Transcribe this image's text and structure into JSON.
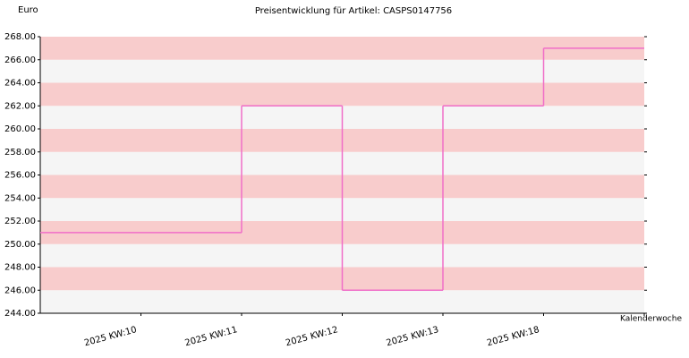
{
  "chart_data": {
    "type": "step",
    "title": "Preisentwicklung für Artikel: CASPS0147756",
    "y_label": "Euro",
    "x_label": "Kalenderwoche",
    "categories": [
      "2025 KW:10",
      "2025 KW:11",
      "2025 KW:12",
      "2025 KW:13",
      "2025 KW:18",
      null
    ],
    "series": [
      {
        "name": "CASPS0147756",
        "color": "#f06ec8",
        "values": [
          251,
          251,
          262,
          246,
          262,
          267
        ]
      }
    ],
    "ylim": [
      244,
      268
    ],
    "yticks": [
      {
        "value": 244,
        "label": "244.00"
      },
      {
        "value": 246,
        "label": "246.00"
      },
      {
        "value": 248,
        "label": "248.00"
      },
      {
        "value": 250,
        "label": "250.00"
      },
      {
        "value": 252,
        "label": "252.00"
      },
      {
        "value": 254,
        "label": "254.00"
      },
      {
        "value": 256,
        "label": "256.00"
      },
      {
        "value": 258,
        "label": "258.00"
      },
      {
        "value": 260,
        "label": "260.00"
      },
      {
        "value": 262,
        "label": "262.00"
      },
      {
        "value": 264,
        "label": "264.00"
      },
      {
        "value": 266,
        "label": "266.00"
      },
      {
        "value": 268,
        "label": "268.00"
      }
    ],
    "band_colors": [
      "#f5f5f5",
      "#f8cccc"
    ]
  }
}
